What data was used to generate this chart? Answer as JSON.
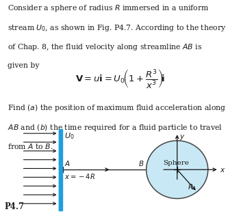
{
  "bg_color": "#ffffff",
  "text_color": "#1a1a1a",
  "sphere_color": "#c8e8f5",
  "sphere_edge_color": "#444444",
  "bar_color": "#1e9fe0",
  "arrow_color": "#111111",
  "label_U0": "$U_0$",
  "label_A": "$A$",
  "label_x": "$x = -4R$",
  "label_B": "$B$",
  "label_Sphere": "Sphere",
  "label_R": "$R$",
  "label_y": "$y$",
  "label_xaxis": "$x$",
  "label_p47": "P4.7"
}
